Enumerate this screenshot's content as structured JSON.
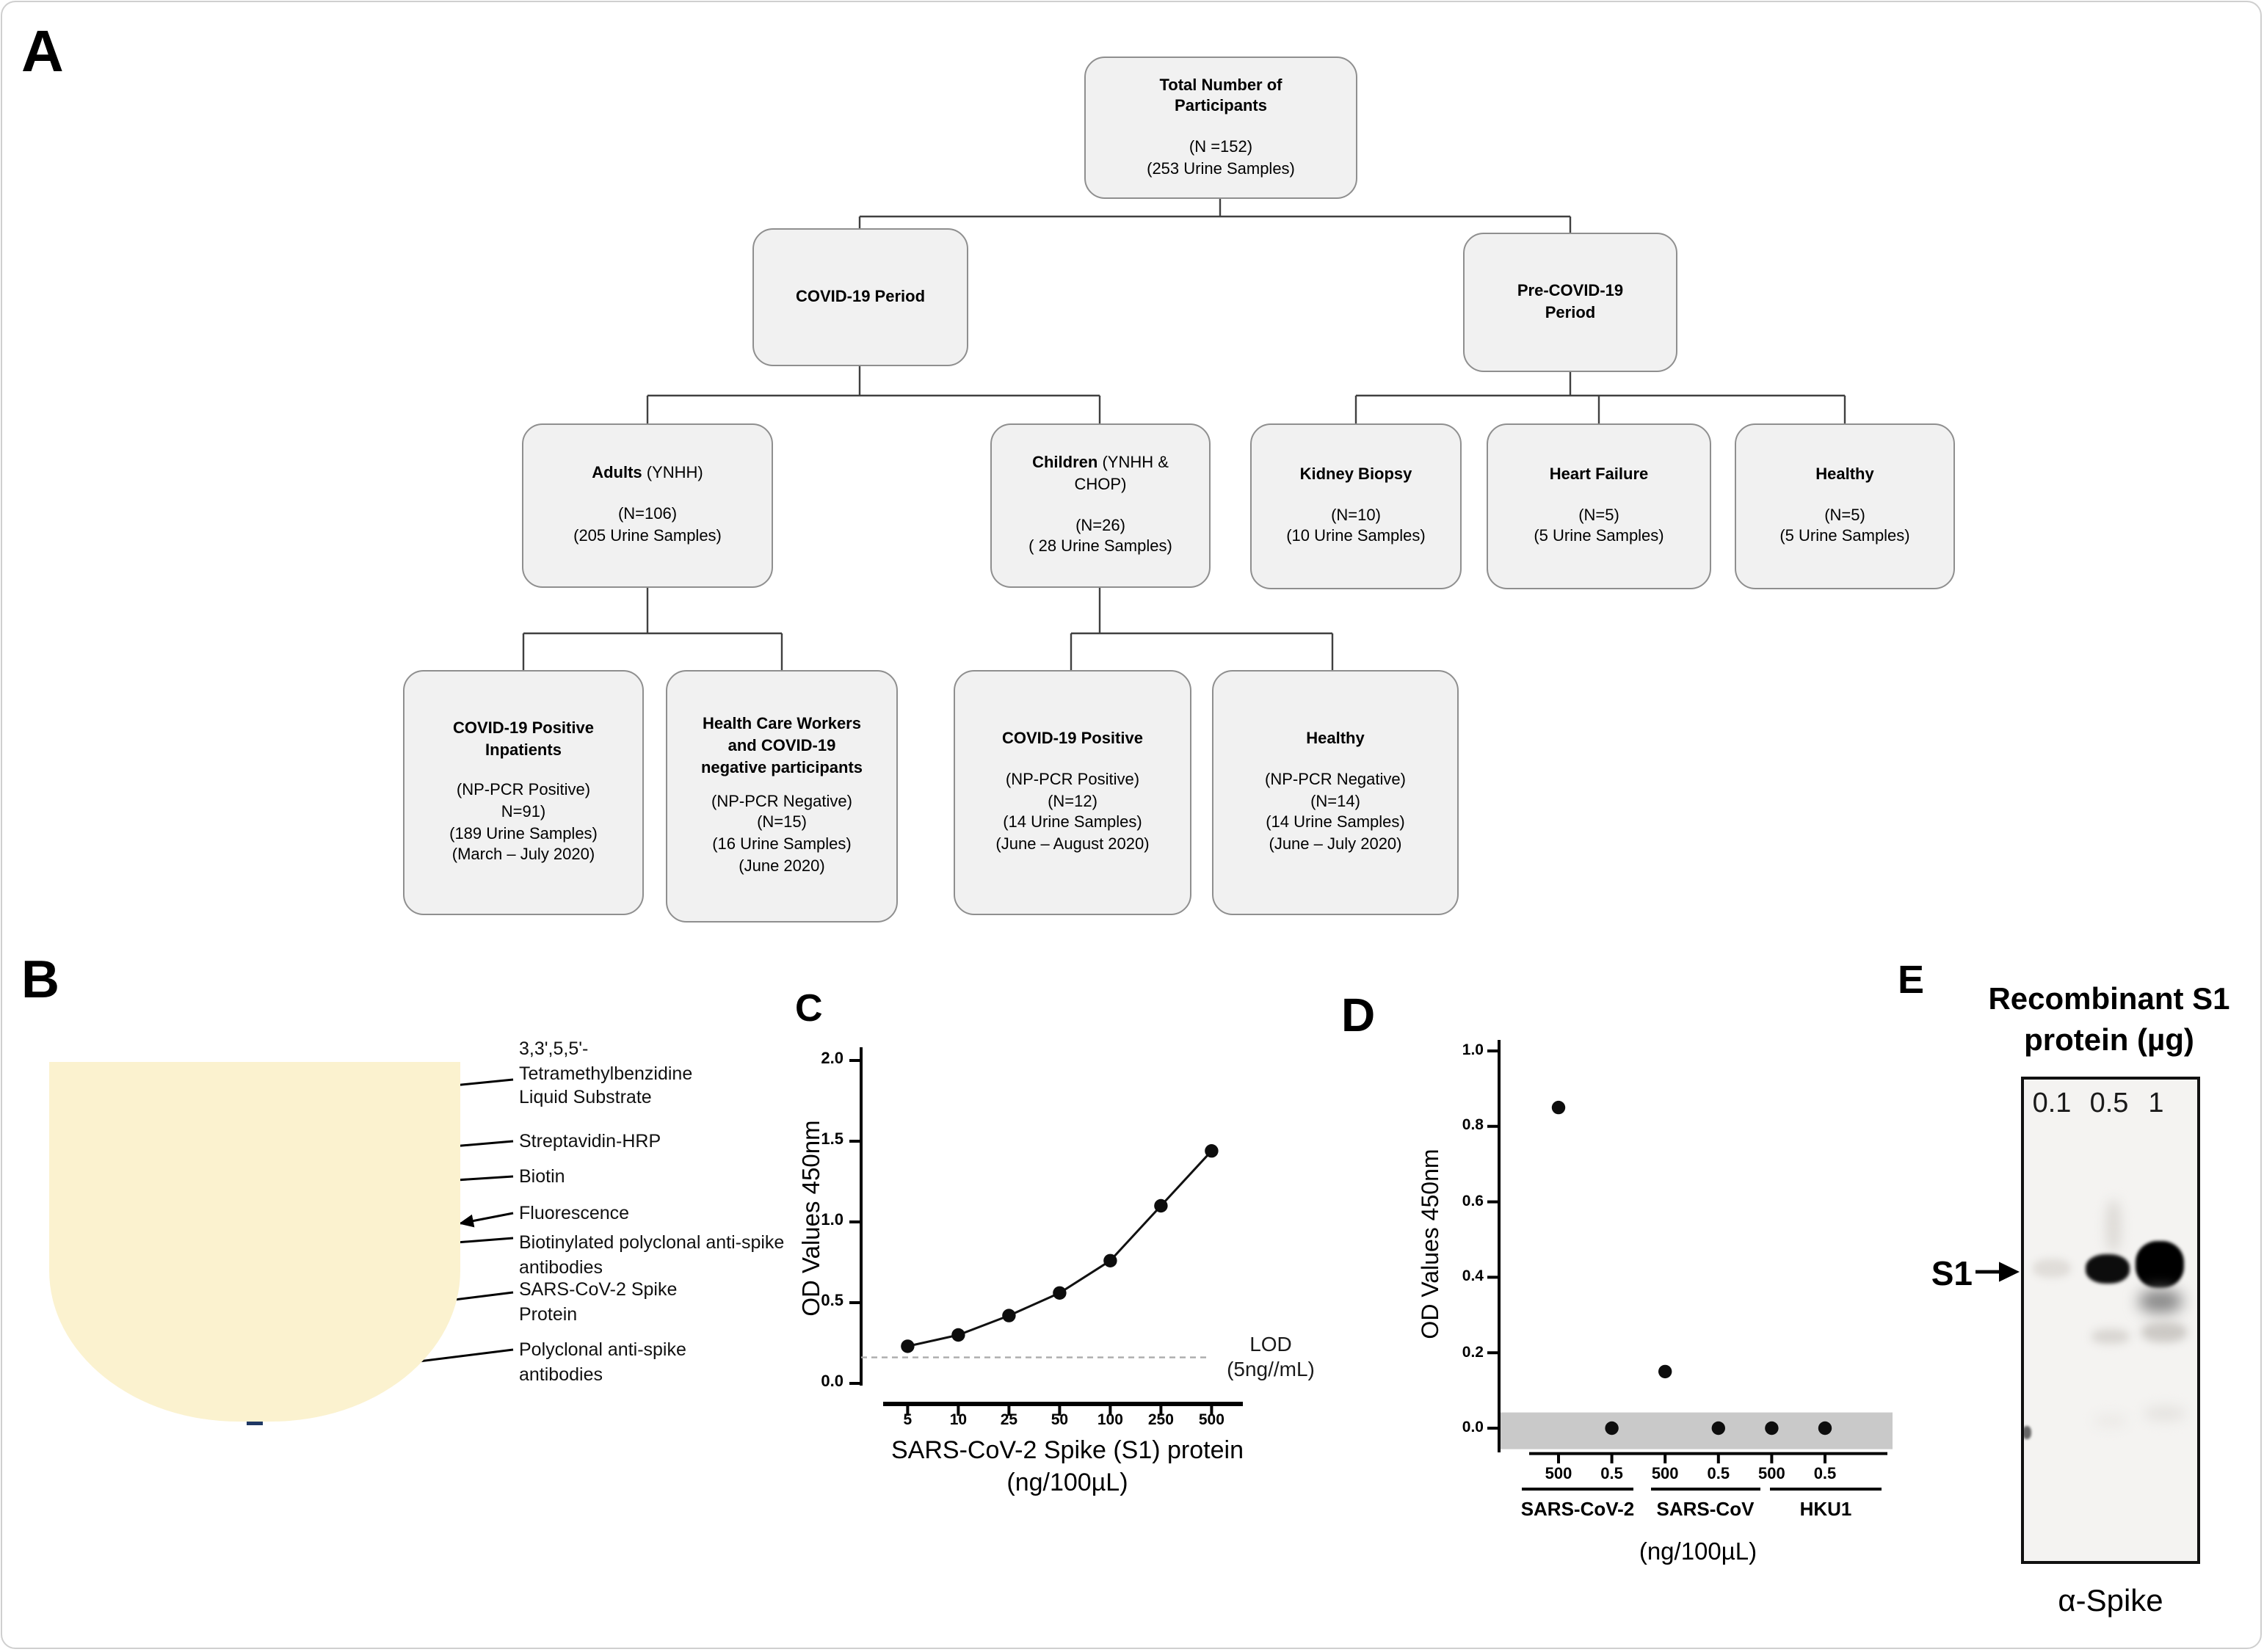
{
  "panel_letters": {
    "a": "A",
    "b": "B",
    "c": "C",
    "d": "D",
    "e": "E"
  },
  "colors": {
    "flow_box_fill": "#f1f1f1",
    "flow_box_border": "#8f8f8f",
    "well_fill": "#FBF2CF",
    "substrate_dots": "#232A5C",
    "streptavidin": "#2E75B6",
    "biotin_hex": "#D9D9DE",
    "fluorescence_star": "#F5821F",
    "capture_antibody_purple": "#7030A0",
    "detection_antibody_blue": "#2E75B6",
    "spike_protein_green": "#C9E2B8",
    "linker_green": "#5A9E3C",
    "baseline_band_gray": "#C9C9C9"
  },
  "flowchart": {
    "boxes": {
      "total": {
        "title": "Total Number of Participants",
        "lines": [
          "(N =152)",
          "(253 Urine Samples)"
        ]
      },
      "covid_period": {
        "title": "COVID-19 Period"
      },
      "pre_covid_period": {
        "title": "Pre-COVID-19 Period"
      },
      "adults": {
        "title": "Adults",
        "suffix": " (YNHH)",
        "lines": [
          "(N=106)",
          "(205 Urine Samples)"
        ]
      },
      "children": {
        "title": "Children",
        "suffix": " (YNHH & CHOP)",
        "lines": [
          "(N=26)",
          "( 28 Urine Samples)"
        ]
      },
      "kidney": {
        "title": "Kidney Biopsy",
        "lines": [
          "(N=10)",
          "(10 Urine Samples)"
        ]
      },
      "heart": {
        "title": "Heart Failure",
        "lines": [
          "(N=5)",
          "(5 Urine Samples)"
        ]
      },
      "healthy_pre": {
        "title": "Healthy",
        "lines": [
          "(N=5)",
          "(5 Urine Samples)"
        ]
      },
      "inpatients": {
        "title": "COVID-19 Positive Inpatients",
        "lines": [
          "(NP-PCR Positive)",
          "N=91)",
          "(189 Urine Samples)",
          "(March – July 2020)"
        ]
      },
      "hcw": {
        "title": "Health Care Workers and COVID-19 negative participants",
        "lines": [
          "(NP-PCR Negative)",
          "(N=15)",
          "(16 Urine Samples)",
          "(June 2020)"
        ]
      },
      "children_positive": {
        "title": "COVID-19 Positive",
        "lines": [
          "(NP-PCR Positive)",
          "(N=12)",
          "(14 Urine Samples)",
          "(June – August 2020)"
        ]
      },
      "children_healthy": {
        "title": "Healthy",
        "lines": [
          "(NP-PCR Negative)",
          "(N=14)",
          "(14 Urine Samples)",
          "(June – July 2020)"
        ]
      }
    }
  },
  "assay_diagram": {
    "labels": [
      "3,3',5,5'-Tetramethylbenzidine Liquid Substrate",
      "Streptavidin-HRP",
      "Biotin",
      "Fluorescence",
      "Biotinylated polyclonal anti-spike antibodies",
      "SARS-CoV-2 Spike Protein",
      "Polyclonal anti-spike antibodies"
    ]
  },
  "chart_data": [
    {
      "id": "s1-standard-curve",
      "type": "line",
      "title": "",
      "xlabel": "SARS-CoV-2 Spike (S1) protein (ng/100µL)",
      "ylabel": "OD Values 450nm",
      "x": [
        5,
        10,
        25,
        50,
        100,
        250,
        500
      ],
      "x_tick_labels": [
        "5",
        "10",
        "25",
        "50",
        "100",
        "250",
        "500"
      ],
      "values": [
        0.23,
        0.3,
        0.42,
        0.56,
        0.76,
        1.1,
        1.44
      ],
      "ylim": [
        0.0,
        2.0
      ],
      "y_tick_labels": [
        "0.0",
        "0.5",
        "1.0",
        "1.5",
        "2.0"
      ],
      "lod": {
        "value": 0.16,
        "label": "LOD",
        "sublabel": "(5ng//mL)"
      }
    },
    {
      "id": "specificity-scatter",
      "type": "scatter",
      "xlabel": "(ng/100µL)",
      "ylabel": "OD Values 450nm",
      "ylim": [
        0.0,
        1.0
      ],
      "y_tick_labels": [
        "0.0",
        "0.2",
        "0.4",
        "0.6",
        "0.8",
        "1.0"
      ],
      "groups": [
        {
          "name": "SARS-CoV-2",
          "doses": [
            "500",
            "0.5"
          ],
          "values": [
            0.85,
            0.0
          ]
        },
        {
          "name": "SARS-CoV",
          "doses": [
            "500",
            "0.5"
          ],
          "values": [
            0.15,
            0.0
          ]
        },
        {
          "name": "HKU1",
          "doses": [
            "500",
            "0.5"
          ],
          "values": [
            0.0,
            0.0
          ]
        }
      ],
      "values": [
        0.85,
        0.0,
        0.15,
        0.0,
        0.0,
        0.0
      ],
      "baseline_band": [
        -0.06,
        0.04
      ]
    }
  ],
  "western_blot": {
    "panel_title": "Recombinant S1 protein (µg)",
    "lanes": [
      "0.1",
      "0.5",
      "1"
    ],
    "band_label": "S1",
    "antibody_label": "α-Spike"
  }
}
